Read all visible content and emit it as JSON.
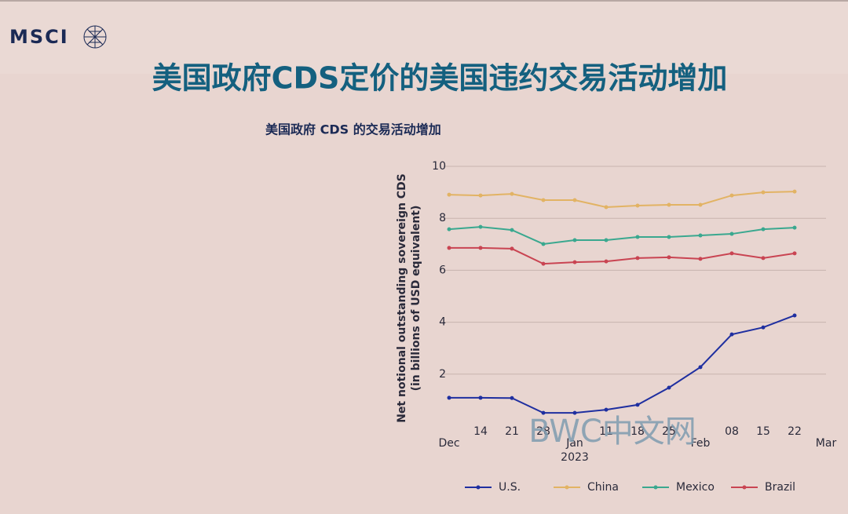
{
  "header": {
    "logo": "MSCI",
    "title": "美国政府CDS定价的美国违约交易活动增加"
  },
  "watermark": "BWC中文网",
  "chart_data": {
    "type": "line",
    "title": "美国政府 CDS 的交易活动增加",
    "y_label": [
      "Net notional outstanding sovereign CDS",
      "(in billions of USD equivalent)"
    ],
    "categories": [
      "Dec",
      "14",
      "21",
      "28",
      "Jan",
      "11",
      "18",
      "25",
      "Feb",
      "08",
      "15",
      "22",
      "Mar"
    ],
    "x_sublabel": {
      "index": 4,
      "label": "2023"
    },
    "ylim": [
      0,
      10
    ],
    "yticks": [
      2,
      4,
      6,
      8,
      10
    ],
    "grid": true,
    "legend": "bottom",
    "series": [
      {
        "name": "U.S.",
        "color": "#1f2fa0",
        "values": [
          1.09,
          1.09,
          1.08,
          0.51,
          0.51,
          0.63,
          0.82,
          1.48,
          2.27,
          3.53,
          3.8,
          4.26,
          null
        ]
      },
      {
        "name": "China",
        "color": "#e2b364",
        "values": [
          8.91,
          8.88,
          8.94,
          8.7,
          8.7,
          8.43,
          8.49,
          8.52,
          8.52,
          8.88,
          9.0,
          9.03,
          null
        ]
      },
      {
        "name": "Mexico",
        "color": "#3aa88f",
        "values": [
          7.58,
          7.67,
          7.55,
          7.01,
          7.16,
          7.16,
          7.28,
          7.28,
          7.34,
          7.4,
          7.58,
          7.64,
          null
        ]
      },
      {
        "name": "Brazil",
        "color": "#c94452",
        "values": [
          6.86,
          6.86,
          6.83,
          6.25,
          6.31,
          6.34,
          6.47,
          6.5,
          6.44,
          6.65,
          6.47,
          6.65,
          null
        ]
      }
    ]
  }
}
